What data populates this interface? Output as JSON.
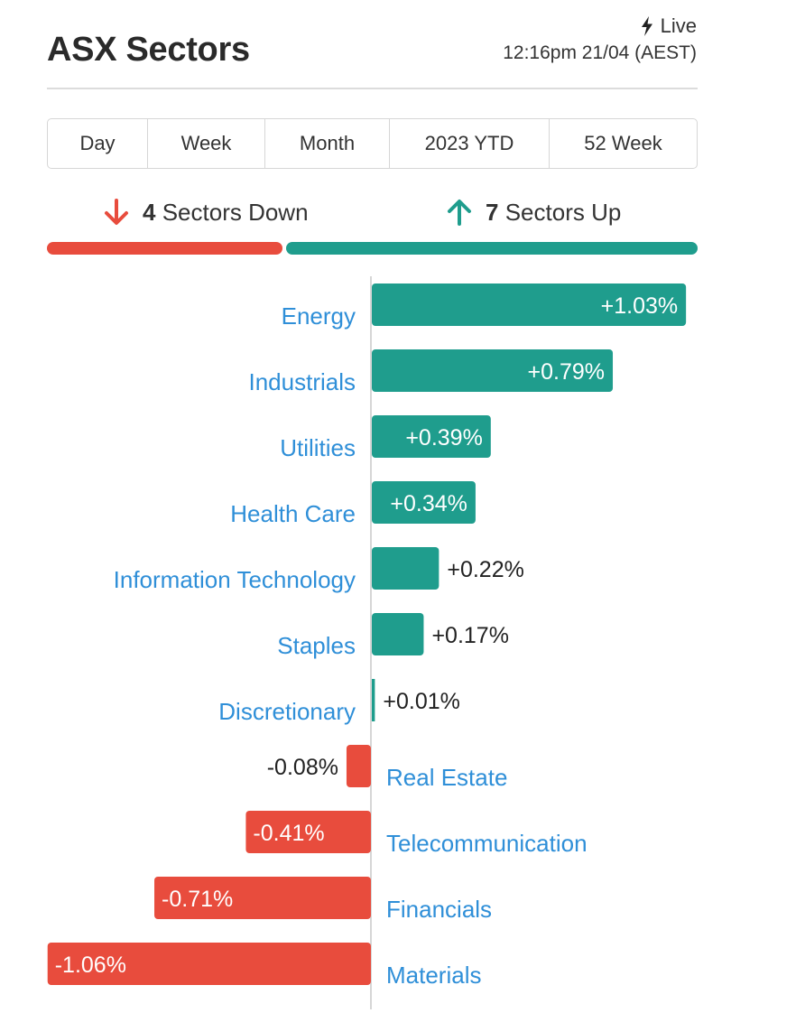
{
  "header": {
    "title": "ASX Sectors",
    "live_label": "Live",
    "timestamp": "12:16pm 21/04 (AEST)"
  },
  "tabs": [
    {
      "label": "Day",
      "active": true
    },
    {
      "label": "Week",
      "active": false
    },
    {
      "label": "Month",
      "active": false
    },
    {
      "label": "2023 YTD",
      "active": false
    },
    {
      "label": "52 Week",
      "active": false
    }
  ],
  "summary": {
    "down_count": "4",
    "down_label": "Sectors Down",
    "up_count": "7",
    "up_label": "Sectors Up"
  },
  "colors": {
    "up": "#1f9d8d",
    "down": "#e84c3d",
    "label": "#2f8fd8",
    "axis": "#d6d6d6"
  },
  "chart_data": {
    "type": "bar",
    "orientation": "horizontal",
    "title": "",
    "categories": [
      "Energy",
      "Industrials",
      "Utilities",
      "Health Care",
      "Information Technology",
      "Staples",
      "Discretionary",
      "Real Estate",
      "Telecommunication",
      "Financials",
      "Materials"
    ],
    "values": [
      1.03,
      0.79,
      0.39,
      0.34,
      0.22,
      0.17,
      0.01,
      -0.08,
      -0.41,
      -0.71,
      -1.06
    ],
    "value_labels": [
      "+1.03%",
      "+0.79%",
      "+0.39%",
      "+0.34%",
      "+0.22%",
      "+0.17%",
      "+0.01%",
      "-0.08%",
      "-0.41%",
      "-0.71%",
      "-1.06%"
    ],
    "unit": "%",
    "grid": false,
    "legend": "none"
  }
}
